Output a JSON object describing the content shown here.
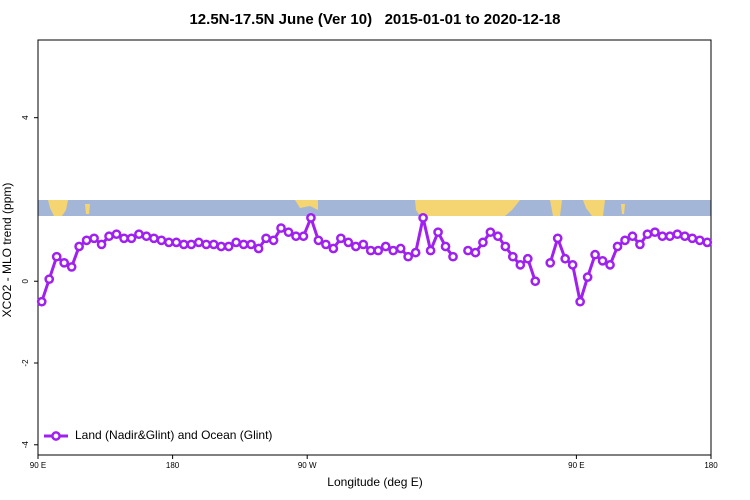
{
  "chart_data": {
    "type": "line",
    "title": "12.5N-17.5N June (Ver 10)   2015-01-01 to 2020-12-18",
    "xlabel": "Longitude (deg E)",
    "ylabel": "XCO2 - MLO trend (ppm)",
    "xlim": [
      90,
      540
    ],
    "xticks": [
      {
        "value": 90,
        "label": "90 E"
      },
      {
        "value": 180,
        "label": "180"
      },
      {
        "value": 270,
        "label": "90 W"
      },
      {
        "value": 450,
        "label": "90 E"
      },
      {
        "value": 540,
        "label": "180"
      }
    ],
    "ylim": [
      -4.25,
      5.9
    ],
    "yticks": [
      -4,
      -2,
      0,
      4
    ],
    "legend": "bottom-left",
    "x": [
      92.5,
      97.5,
      102.5,
      107.5,
      112.5,
      117.5,
      122.5,
      127.5,
      132.5,
      137.5,
      142.5,
      147.5,
      152.5,
      157.5,
      162.5,
      167.5,
      172.5,
      177.5,
      182.5,
      187.5,
      192.5,
      197.5,
      202.5,
      207.5,
      212.5,
      217.5,
      222.5,
      227.5,
      232.5,
      237.5,
      242.5,
      247.5,
      252.5,
      257.5,
      262.5,
      267.5,
      272.5,
      277.5,
      282.5,
      287.5,
      292.5,
      297.5,
      302.5,
      307.5,
      312.5,
      317.5,
      322.5,
      327.5,
      332.5,
      337.5,
      342.5,
      347.5,
      352.5,
      357.5,
      362.5,
      367.5,
      372.5,
      377.5,
      382.5,
      387.5,
      392.5,
      397.5,
      402.5,
      407.5,
      412.5,
      417.5,
      422.5,
      427.5,
      432.5,
      437.5,
      442.5,
      447.5,
      452.5,
      457.5,
      462.5,
      467.5,
      472.5,
      477.5,
      482.5,
      487.5,
      492.5,
      497.5,
      502.5,
      507.5,
      512.5,
      517.5,
      522.5,
      527.5,
      532.5,
      537.5
    ],
    "series": [
      {
        "name": "Land (Nadir&Glint) and Ocean (Glint)",
        "color": "#a020f0",
        "values": [
          -0.5,
          0.05,
          0.6,
          0.45,
          0.35,
          0.85,
          1.0,
          1.05,
          0.9,
          1.1,
          1.15,
          1.05,
          1.05,
          1.15,
          1.1,
          1.05,
          1.0,
          0.95,
          0.95,
          0.9,
          0.9,
          0.95,
          0.9,
          0.9,
          0.85,
          0.85,
          0.95,
          0.9,
          0.9,
          0.8,
          1.05,
          1.0,
          1.3,
          1.2,
          1.1,
          1.1,
          1.55,
          1.0,
          0.9,
          0.8,
          1.05,
          0.95,
          0.85,
          0.9,
          0.75,
          0.75,
          0.85,
          0.75,
          0.8,
          0.6,
          0.7,
          1.55,
          0.75,
          1.2,
          0.85,
          0.6,
          null,
          0.75,
          0.7,
          0.95,
          1.2,
          1.1,
          0.85,
          0.6,
          0.4,
          0.55,
          0.0,
          null,
          0.45,
          1.05,
          0.55,
          0.4,
          -0.5,
          0.1,
          0.65,
          0.5,
          0.4,
          0.85,
          1.0,
          1.1,
          0.9,
          1.15,
          1.2,
          1.1,
          1.1,
          1.15,
          1.1,
          1.05,
          1.0,
          0.95
        ]
      }
    ]
  }
}
